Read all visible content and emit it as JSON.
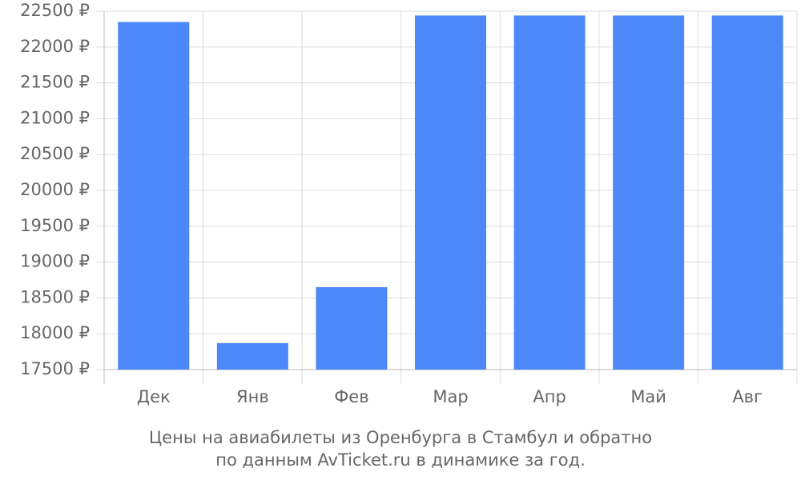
{
  "chart_data": {
    "type": "bar",
    "caption": [
      "Цены на авиабилеты из Оренбурга в Стамбул и обратно",
      "по данным AvTicket.ru в динамике за год."
    ],
    "categories": [
      "Дек",
      "Янв",
      "Фев",
      "Мар",
      "Апр",
      "Май",
      "Авг"
    ],
    "values": [
      22350,
      17870,
      18650,
      22440,
      22440,
      22440,
      22440
    ],
    "color": "#4d88f8",
    "ylim": [
      17500,
      22500
    ],
    "yticks": [
      {
        "value": 17500,
        "label": "17500 ₽"
      },
      {
        "value": 18000,
        "label": "18000 ₽"
      },
      {
        "value": 18500,
        "label": "18500 ₽"
      },
      {
        "value": 19000,
        "label": "19000 ₽"
      },
      {
        "value": 19500,
        "label": "19500 ₽"
      },
      {
        "value": 20000,
        "label": "20000 ₽"
      },
      {
        "value": 20500,
        "label": "20500 ₽"
      },
      {
        "value": 21000,
        "label": "21000 ₽"
      },
      {
        "value": 21500,
        "label": "21500 ₽"
      },
      {
        "value": 22000,
        "label": "22000 ₽"
      },
      {
        "value": 22500,
        "label": "22500 ₽"
      }
    ],
    "grid": true
  }
}
